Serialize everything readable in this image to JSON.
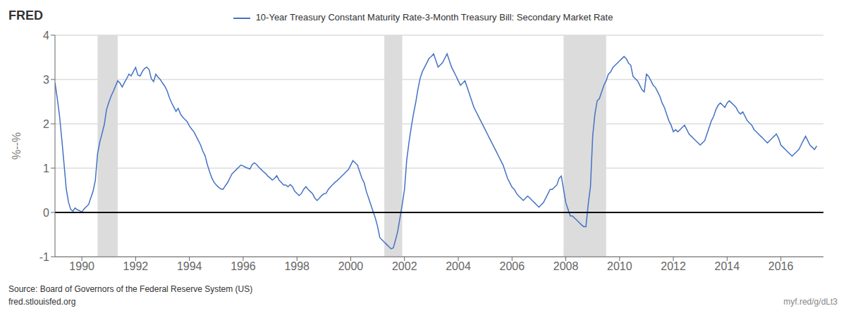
{
  "chart_data": {
    "type": "line",
    "title": "10-Year Treasury Constant Maturity Rate-3-Month Treasury Bill: Secondary Market Rate",
    "ylabel": "%--%",
    "color": "#4472c4",
    "grid": true,
    "xlim": [
      1989.0,
      2017.583
    ],
    "xticks": [
      1990,
      1992,
      1994,
      1996,
      1998,
      2000,
      2002,
      2004,
      2006,
      2008,
      2010,
      2012,
      2014,
      2016
    ],
    "ylim": [
      -1,
      4
    ],
    "yticks": [
      -1,
      0,
      1,
      2,
      3,
      4
    ],
    "shaded_ranges": [
      {
        "start": 1990.583,
        "end": 1991.333
      },
      {
        "start": 2001.25,
        "end": 2001.917
      },
      {
        "start": 2007.917,
        "end": 2009.5
      }
    ],
    "reference_lines": [
      0
    ],
    "annotations": [
      "FRED",
      "Source: Board of Governors of the Federal Reserve System (US)",
      "fred.stlouisfed.org",
      "myf.red/g/dLt3"
    ],
    "x": [
      1989.0,
      1989.083,
      1989.167,
      1989.25,
      1989.333,
      1989.417,
      1989.5,
      1989.583,
      1989.667,
      1989.75,
      1989.833,
      1989.917,
      1990.0,
      1990.083,
      1990.167,
      1990.25,
      1990.333,
      1990.417,
      1990.5,
      1990.583,
      1990.667,
      1990.75,
      1990.833,
      1990.917,
      1991.0,
      1991.083,
      1991.167,
      1991.25,
      1991.333,
      1991.417,
      1991.5,
      1991.583,
      1991.667,
      1991.75,
      1991.833,
      1991.917,
      1992.0,
      1992.083,
      1992.167,
      1992.25,
      1992.333,
      1992.417,
      1992.5,
      1992.583,
      1992.667,
      1992.75,
      1992.833,
      1992.917,
      1993.0,
      1993.083,
      1993.167,
      1993.25,
      1993.333,
      1993.417,
      1993.5,
      1993.583,
      1993.667,
      1993.75,
      1993.833,
      1993.917,
      1994.0,
      1994.083,
      1994.167,
      1994.25,
      1994.333,
      1994.417,
      1994.5,
      1994.583,
      1994.667,
      1994.75,
      1994.833,
      1994.917,
      1995.0,
      1995.083,
      1995.167,
      1995.25,
      1995.333,
      1995.417,
      1995.5,
      1995.583,
      1995.667,
      1995.75,
      1995.833,
      1995.917,
      1996.0,
      1996.083,
      1996.167,
      1996.25,
      1996.333,
      1996.417,
      1996.5,
      1996.583,
      1996.667,
      1996.75,
      1996.833,
      1996.917,
      1997.0,
      1997.083,
      1997.167,
      1997.25,
      1997.333,
      1997.417,
      1997.5,
      1997.583,
      1997.667,
      1997.75,
      1997.833,
      1997.917,
      1998.0,
      1998.083,
      1998.167,
      1998.25,
      1998.333,
      1998.417,
      1998.5,
      1998.583,
      1998.667,
      1998.75,
      1998.833,
      1998.917,
      1999.0,
      1999.083,
      1999.167,
      1999.25,
      1999.333,
      1999.417,
      1999.5,
      1999.583,
      1999.667,
      1999.75,
      1999.833,
      1999.917,
      2000.0,
      2000.083,
      2000.167,
      2000.25,
      2000.333,
      2000.417,
      2000.5,
      2000.583,
      2000.667,
      2000.75,
      2000.833,
      2000.917,
      2001.0,
      2001.083,
      2001.167,
      2001.25,
      2001.333,
      2001.417,
      2001.5,
      2001.583,
      2001.667,
      2001.75,
      2001.833,
      2001.917,
      2002.0,
      2002.083,
      2002.167,
      2002.25,
      2002.333,
      2002.417,
      2002.5,
      2002.583,
      2002.667,
      2002.75,
      2002.833,
      2002.917,
      2003.0,
      2003.083,
      2003.167,
      2003.25,
      2003.333,
      2003.417,
      2003.5,
      2003.583,
      2003.667,
      2003.75,
      2003.833,
      2003.917,
      2004.0,
      2004.083,
      2004.167,
      2004.25,
      2004.333,
      2004.417,
      2004.5,
      2004.583,
      2004.667,
      2004.75,
      2004.833,
      2004.917,
      2005.0,
      2005.083,
      2005.167,
      2005.25,
      2005.333,
      2005.417,
      2005.5,
      2005.583,
      2005.667,
      2005.75,
      2005.833,
      2005.917,
      2006.0,
      2006.083,
      2006.167,
      2006.25,
      2006.333,
      2006.417,
      2006.5,
      2006.583,
      2006.667,
      2006.75,
      2006.833,
      2006.917,
      2007.0,
      2007.083,
      2007.167,
      2007.25,
      2007.333,
      2007.417,
      2007.5,
      2007.583,
      2007.667,
      2007.75,
      2007.833,
      2007.917,
      2008.0,
      2008.083,
      2008.167,
      2008.25,
      2008.333,
      2008.417,
      2008.5,
      2008.583,
      2008.667,
      2008.75,
      2008.833,
      2008.917,
      2009.0,
      2009.083,
      2009.167,
      2009.25,
      2009.333,
      2009.417,
      2009.5,
      2009.583,
      2009.667,
      2009.75,
      2009.833,
      2009.917,
      2010.0,
      2010.083,
      2010.167,
      2010.25,
      2010.333,
      2010.417,
      2010.5,
      2010.583,
      2010.667,
      2010.75,
      2010.833,
      2010.917,
      2011.0,
      2011.083,
      2011.167,
      2011.25,
      2011.333,
      2011.417,
      2011.5,
      2011.583,
      2011.667,
      2011.75,
      2011.833,
      2011.917,
      2012.0,
      2012.083,
      2012.167,
      2012.25,
      2012.333,
      2012.417,
      2012.5,
      2012.583,
      2012.667,
      2012.75,
      2012.833,
      2012.917,
      2013.0,
      2013.083,
      2013.167,
      2013.25,
      2013.333,
      2013.417,
      2013.5,
      2013.583,
      2013.667,
      2013.75,
      2013.833,
      2013.917,
      2014.0,
      2014.083,
      2014.167,
      2014.25,
      2014.333,
      2014.417,
      2014.5,
      2014.583,
      2014.667,
      2014.75,
      2014.833,
      2014.917,
      2015.0,
      2015.083,
      2015.167,
      2015.25,
      2015.333,
      2015.417,
      2015.5,
      2015.583,
      2015.667,
      2015.75,
      2015.833,
      2015.917,
      2016.0,
      2016.083,
      2016.167,
      2016.25,
      2016.333,
      2016.417,
      2016.5,
      2016.583,
      2016.667,
      2016.75,
      2016.833,
      2016.917,
      2017.0,
      2017.083,
      2017.167,
      2017.25,
      2017.333
    ],
    "values": [
      2.93,
      2.58,
      2.19,
      1.67,
      1.12,
      0.54,
      0.24,
      0.07,
      0.03,
      0.1,
      0.06,
      0.04,
      0.01,
      0.08,
      0.13,
      0.18,
      0.33,
      0.48,
      0.72,
      1.32,
      1.59,
      1.78,
      1.98,
      2.32,
      2.48,
      2.62,
      2.73,
      2.85,
      2.97,
      2.92,
      2.83,
      2.93,
      3.02,
      3.12,
      3.08,
      3.18,
      3.27,
      3.1,
      3.08,
      3.18,
      3.25,
      3.28,
      3.22,
      3.02,
      2.95,
      3.12,
      3.05,
      3.0,
      2.92,
      2.85,
      2.75,
      2.6,
      2.48,
      2.38,
      2.28,
      2.35,
      2.22,
      2.15,
      2.1,
      2.05,
      1.95,
      1.88,
      1.82,
      1.72,
      1.62,
      1.52,
      1.38,
      1.28,
      1.08,
      0.92,
      0.78,
      0.68,
      0.62,
      0.57,
      0.53,
      0.52,
      0.6,
      0.67,
      0.77,
      0.87,
      0.92,
      0.97,
      1.02,
      1.07,
      1.05,
      1.02,
      1.0,
      0.98,
      1.08,
      1.12,
      1.08,
      1.02,
      0.97,
      0.92,
      0.88,
      0.82,
      0.78,
      0.73,
      0.77,
      0.83,
      0.73,
      0.68,
      0.62,
      0.62,
      0.58,
      0.63,
      0.58,
      0.48,
      0.43,
      0.38,
      0.43,
      0.52,
      0.58,
      0.52,
      0.47,
      0.42,
      0.32,
      0.27,
      0.32,
      0.38,
      0.42,
      0.43,
      0.52,
      0.58,
      0.63,
      0.68,
      0.72,
      0.77,
      0.82,
      0.87,
      0.92,
      0.97,
      1.07,
      1.17,
      1.12,
      1.07,
      0.92,
      0.77,
      0.67,
      0.47,
      0.32,
      0.17,
      0.02,
      -0.13,
      -0.32,
      -0.57,
      -0.62,
      -0.67,
      -0.72,
      -0.77,
      -0.82,
      -0.8,
      -0.62,
      -0.42,
      -0.12,
      0.18,
      0.52,
      1.18,
      1.58,
      1.92,
      2.22,
      2.48,
      2.78,
      3.03,
      3.18,
      3.28,
      3.38,
      3.48,
      3.52,
      3.58,
      3.43,
      3.28,
      3.33,
      3.38,
      3.48,
      3.58,
      3.43,
      3.28,
      3.18,
      3.08,
      2.97,
      2.87,
      2.92,
      2.97,
      2.82,
      2.67,
      2.52,
      2.37,
      2.27,
      2.17,
      2.07,
      1.97,
      1.87,
      1.77,
      1.67,
      1.57,
      1.47,
      1.37,
      1.27,
      1.17,
      1.07,
      0.92,
      0.77,
      0.67,
      0.57,
      0.52,
      0.43,
      0.37,
      0.32,
      0.27,
      0.32,
      0.37,
      0.32,
      0.27,
      0.22,
      0.17,
      0.12,
      0.17,
      0.22,
      0.32,
      0.42,
      0.52,
      0.52,
      0.57,
      0.62,
      0.77,
      0.82,
      0.52,
      0.22,
      0.07,
      -0.08,
      -0.08,
      -0.13,
      -0.18,
      -0.23,
      -0.28,
      -0.32,
      -0.32,
      0.18,
      0.58,
      1.72,
      2.22,
      2.52,
      2.57,
      2.72,
      2.87,
      2.97,
      3.12,
      3.17,
      3.27,
      3.32,
      3.37,
      3.42,
      3.47,
      3.52,
      3.47,
      3.37,
      3.32,
      3.07,
      3.02,
      2.97,
      2.87,
      2.77,
      2.72,
      3.12,
      3.07,
      2.97,
      2.87,
      2.82,
      2.72,
      2.62,
      2.47,
      2.37,
      2.22,
      2.07,
      1.97,
      1.82,
      1.87,
      1.82,
      1.87,
      1.92,
      1.97,
      1.87,
      1.77,
      1.72,
      1.67,
      1.62,
      1.57,
      1.52,
      1.57,
      1.62,
      1.77,
      1.92,
      2.07,
      2.17,
      2.32,
      2.42,
      2.47,
      2.42,
      2.37,
      2.47,
      2.52,
      2.47,
      2.42,
      2.37,
      2.27,
      2.22,
      2.27,
      2.17,
      2.07,
      2.02,
      1.97,
      1.87,
      1.82,
      1.77,
      1.72,
      1.67,
      1.62,
      1.57,
      1.62,
      1.67,
      1.72,
      1.77,
      1.67,
      1.52,
      1.47,
      1.42,
      1.37,
      1.32,
      1.27,
      1.32,
      1.37,
      1.42,
      1.52,
      1.62,
      1.72,
      1.62,
      1.52,
      1.47,
      1.42,
      1.5
    ]
  }
}
